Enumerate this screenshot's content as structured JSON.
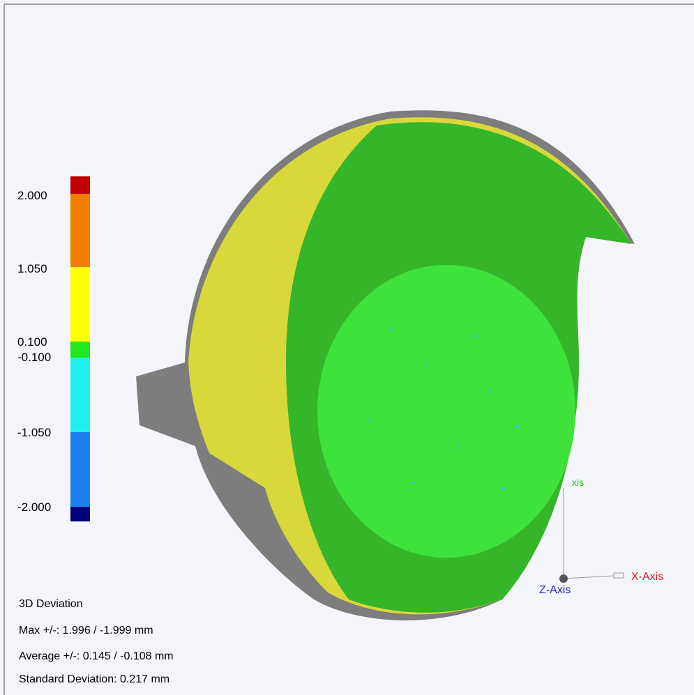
{
  "color_scale": {
    "labels": [
      "2.000",
      "1.050",
      "0.100",
      "-0.100",
      "-1.050",
      "-2.000"
    ]
  },
  "statistics": {
    "title": "3D Deviation",
    "max": "Max +/-: 1.996 / -1.999 mm",
    "average": "Average +/-: 0.145 / -0.108 mm",
    "std_dev": "Standard Deviation: 0.217 mm"
  },
  "axes": {
    "x": "X-Axis",
    "y": "xis",
    "z": "Z-Axis"
  }
}
